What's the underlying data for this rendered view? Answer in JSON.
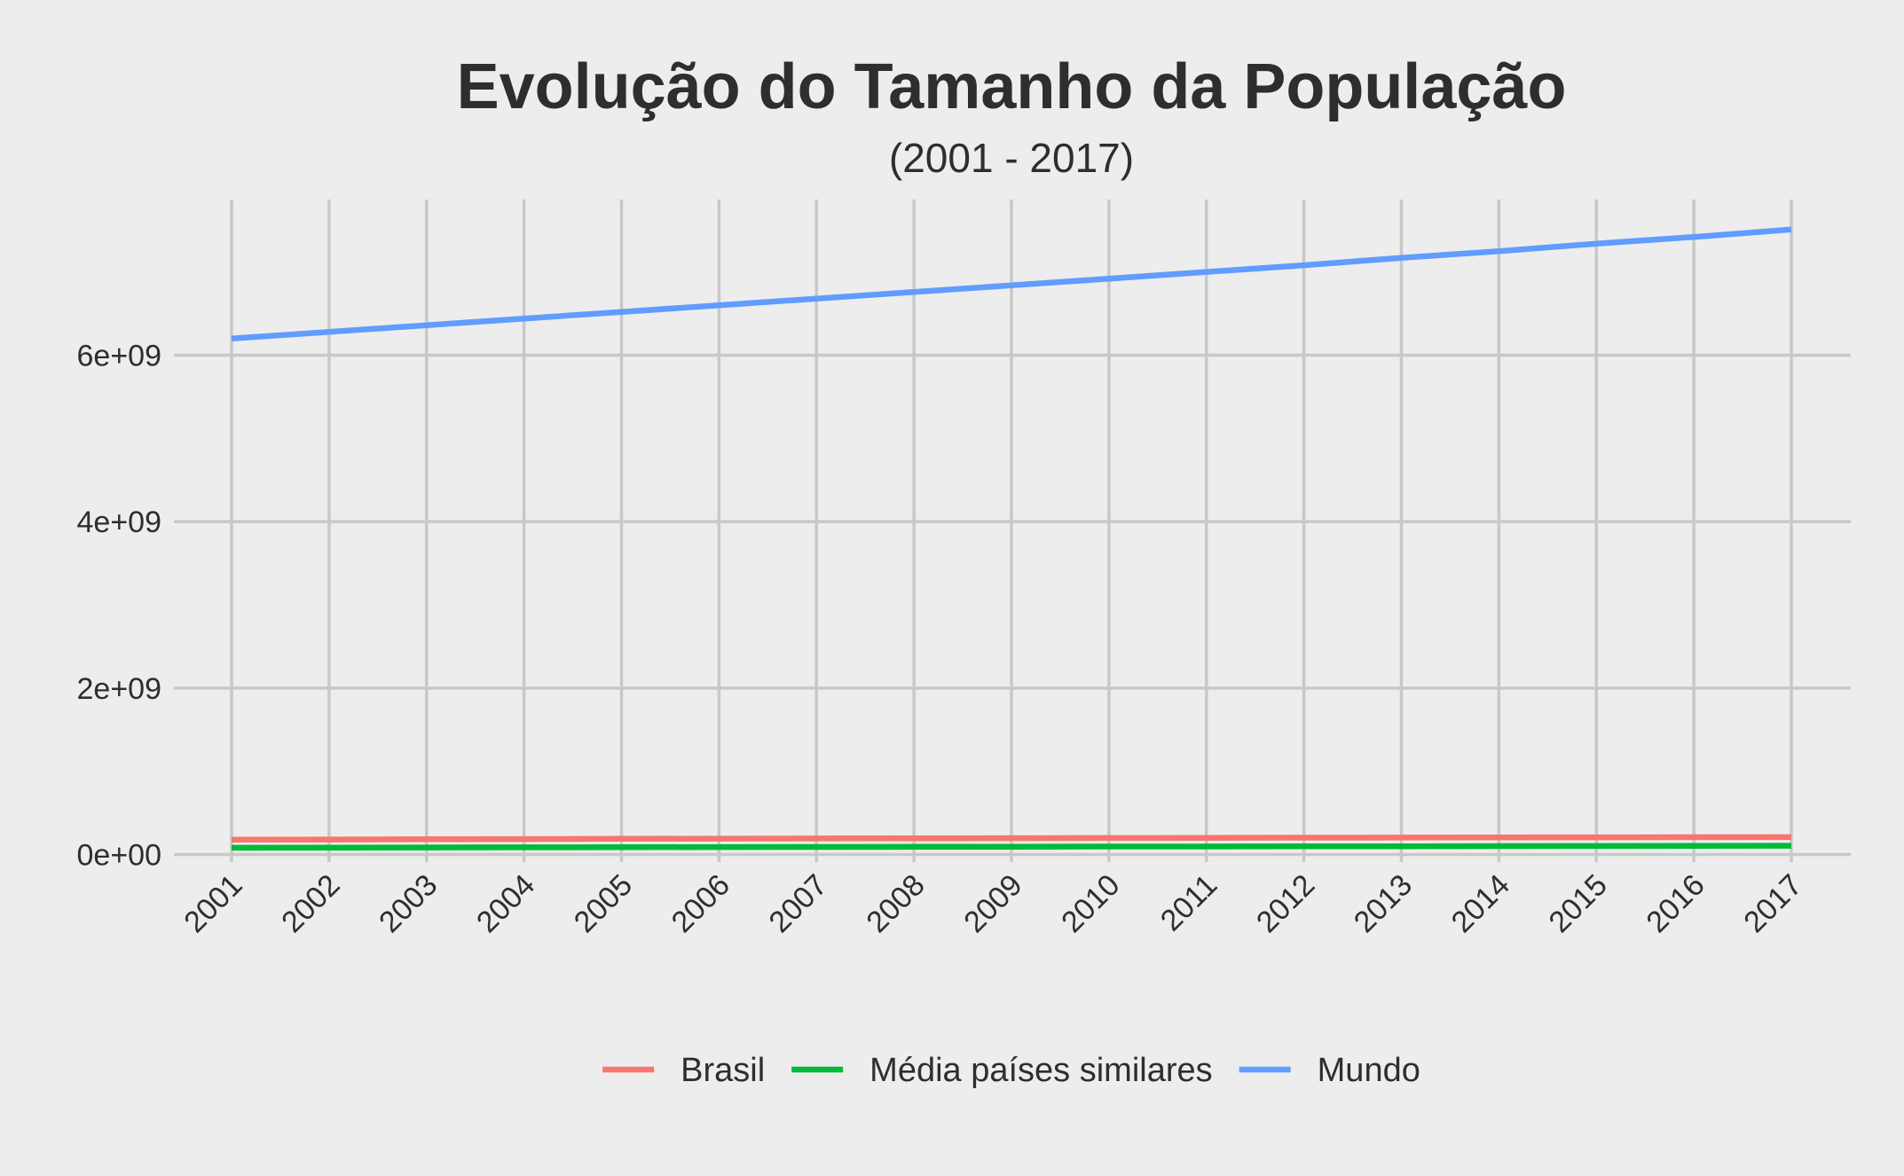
{
  "chart_data": {
    "type": "line",
    "title": "Evolução do Tamanho da População",
    "subtitle": "(2001 - 2017)",
    "xlabel": "",
    "ylabel": "",
    "x": [
      2001,
      2002,
      2003,
      2004,
      2005,
      2006,
      2007,
      2008,
      2009,
      2010,
      2011,
      2012,
      2013,
      2014,
      2015,
      2016,
      2017
    ],
    "x_tick_labels": [
      "2001",
      "2002",
      "2003",
      "2004",
      "2005",
      "2006",
      "2007",
      "2008",
      "2009",
      "2010",
      "2011",
      "2012",
      "2013",
      "2014",
      "2015",
      "2016",
      "2017"
    ],
    "y_ticks": [
      0,
      2000000000,
      4000000000,
      6000000000
    ],
    "y_tick_labels": [
      "0e+00",
      "2e+09",
      "4e+09",
      "6e+09"
    ],
    "ylim": [
      -90000000,
      7870000000
    ],
    "grid": true,
    "legend_position": "bottom",
    "series": [
      {
        "name": "Brasil",
        "color": "#f8766d",
        "values": [
          178000000,
          181000000,
          184000000,
          186000000,
          189000000,
          191000000,
          193000000,
          195000000,
          197000000,
          199000000,
          201000000,
          203000000,
          204000000,
          206000000,
          207000000,
          208000000,
          209000000
        ]
      },
      {
        "name": "Média países similares",
        "color": "#00ba38",
        "values": [
          82000000,
          84000000,
          85000000,
          87000000,
          88000000,
          90000000,
          91000000,
          93000000,
          94000000,
          96000000,
          97000000,
          99000000,
          100000000,
          102000000,
          103000000,
          105000000,
          106000000
        ]
      },
      {
        "name": "Mundo",
        "color": "#619cff",
        "values": [
          6200000000,
          6280000000,
          6360000000,
          6440000000,
          6520000000,
          6600000000,
          6680000000,
          6760000000,
          6840000000,
          6920000000,
          7000000000,
          7080000000,
          7170000000,
          7250000000,
          7340000000,
          7420000000,
          7510000000
        ]
      }
    ]
  }
}
